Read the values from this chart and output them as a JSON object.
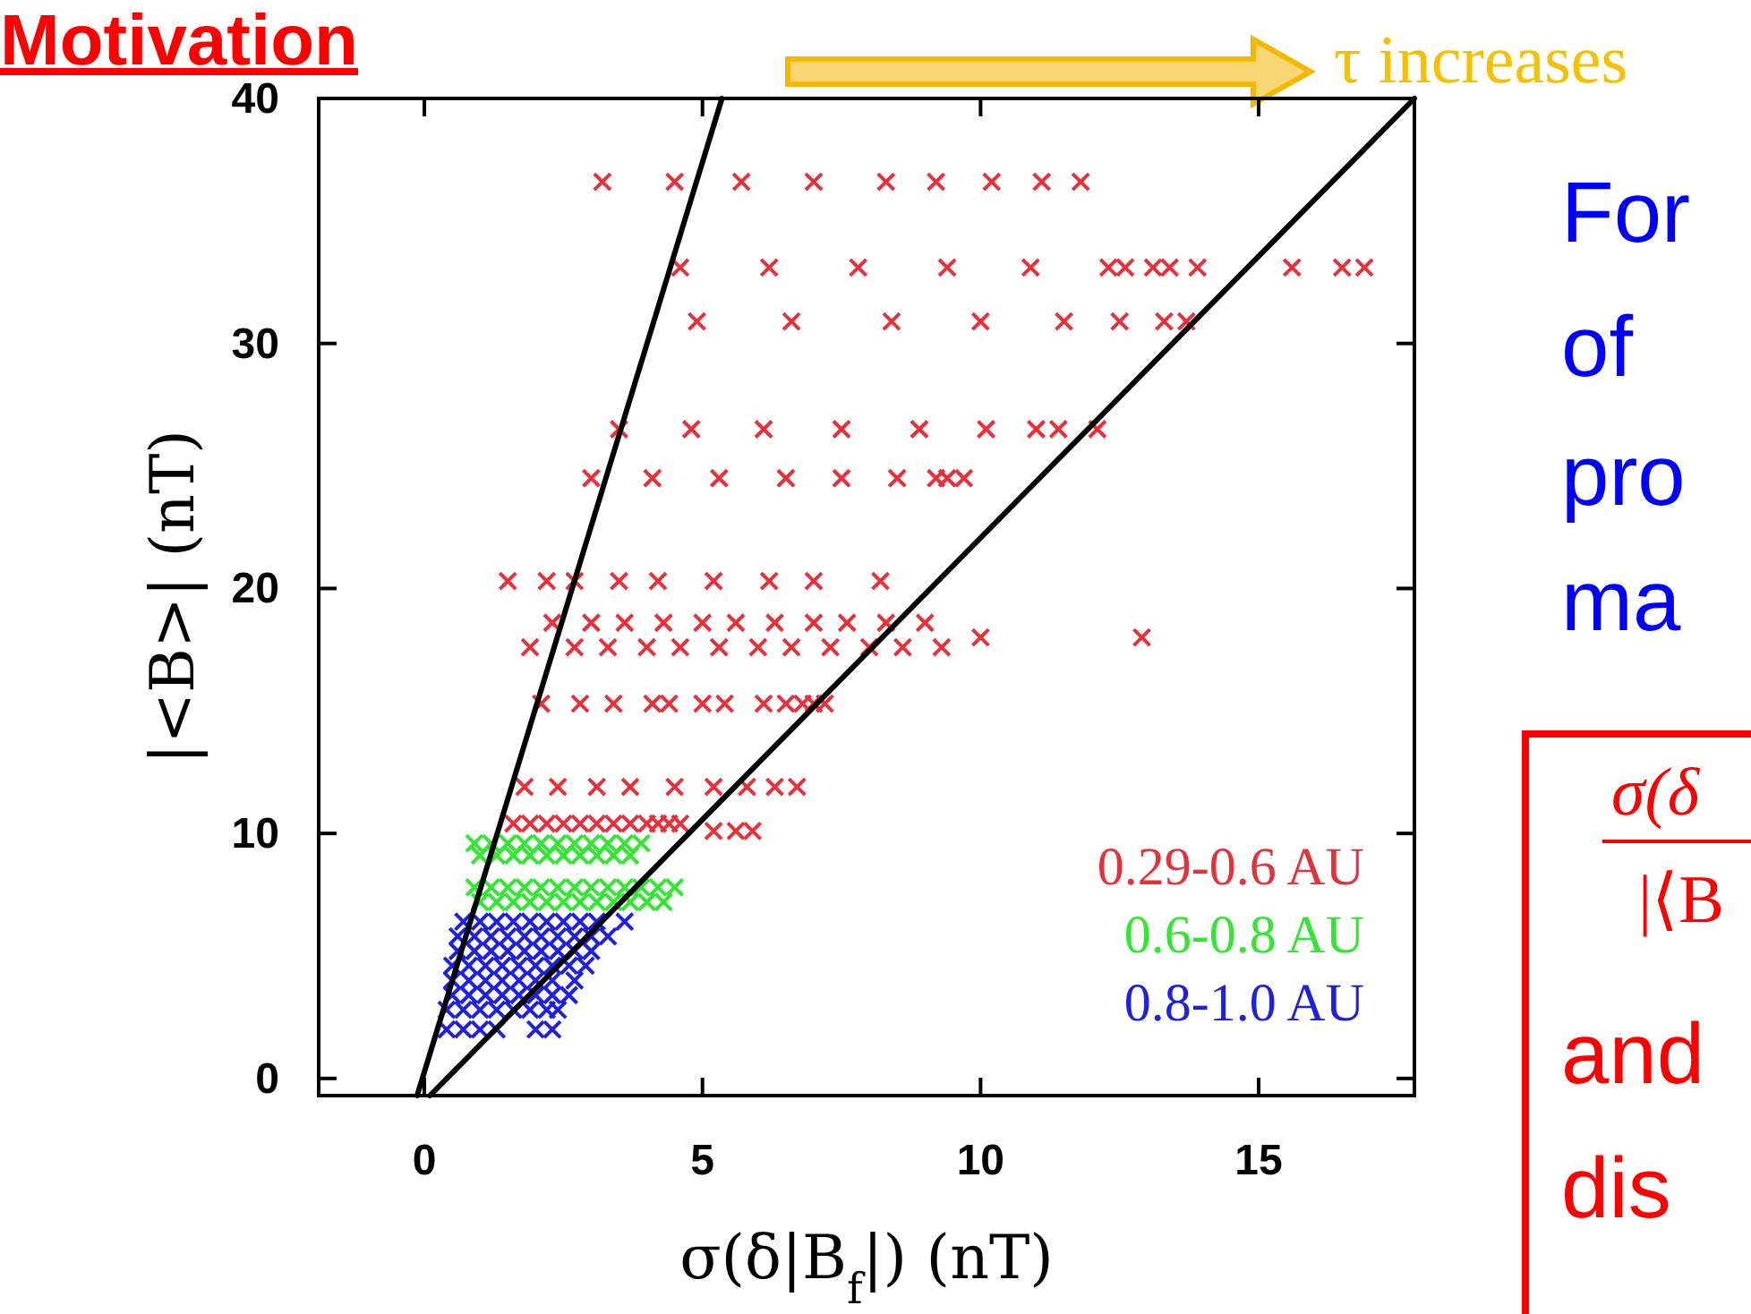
{
  "chart_data": {
    "type": "scatter",
    "xlabel": "σ(δ|B$_{f}$|) (nT)",
    "ylabel": "|<B>| (nT)",
    "xlim": [
      -1.9,
      17.8
    ],
    "ylim": [
      -0.7,
      40
    ],
    "xticks": [
      0,
      5,
      10,
      15
    ],
    "yticks": [
      0,
      10,
      20,
      30,
      40
    ],
    "grid": false,
    "legend": "bottom right",
    "marker": "cross",
    "annotations": [
      "Motivation",
      "τ increases",
      "For",
      "of",
      "pro",
      "ma",
      "σ(δ",
      "|⟨B",
      "and",
      "dis"
    ],
    "series": [
      {
        "name": "0.29-0.6 AU",
        "color": "#e8303a",
        "x": [
          3.2,
          4.5,
          5.7,
          7.0,
          8.3,
          9.2,
          10.2,
          11.1,
          11.8,
          4.6,
          6.2,
          7.8,
          9.4,
          10.9,
          12.3,
          12.6,
          13.1,
          13.4,
          13.9,
          15.6,
          16.5,
          16.9,
          4.9,
          6.6,
          8.4,
          10.0,
          11.5,
          12.5,
          13.3,
          13.7,
          3.5,
          4.8,
          6.1,
          7.5,
          8.9,
          10.1,
          11.0,
          11.4,
          12.1,
          3.0,
          4.1,
          5.3,
          6.5,
          7.5,
          8.5,
          9.2,
          9.4,
          9.7,
          1.5,
          2.2,
          2.7,
          3.5,
          4.2,
          5.2,
          6.2,
          7.0,
          8.2,
          1.9,
          2.3,
          2.7,
          3.0,
          3.3,
          3.6,
          4.0,
          4.3,
          4.6,
          5.0,
          5.3,
          5.6,
          6.0,
          6.3,
          6.6,
          7.0,
          7.3,
          7.6,
          8.0,
          8.3,
          8.6,
          9.0,
          9.3,
          10.0,
          12.9,
          2.1,
          2.8,
          3.4,
          4.1,
          4.4,
          5.0,
          5.4,
          6.1,
          6.5,
          6.8,
          7.0,
          7.2,
          1.8,
          2.4,
          3.1,
          3.7,
          4.5,
          5.2,
          5.8,
          6.3,
          6.7,
          1.6,
          1.9,
          2.2,
          2.5,
          2.8,
          3.1,
          3.4,
          3.7,
          4.0,
          4.2,
          4.4,
          4.6,
          5.2,
          5.6,
          5.9
        ],
        "values": [
          36.6,
          36.6,
          36.6,
          36.6,
          36.6,
          36.6,
          36.6,
          36.6,
          36.6,
          33.1,
          33.1,
          33.1,
          33.1,
          33.1,
          33.1,
          33.1,
          33.1,
          33.1,
          33.1,
          33.1,
          33.1,
          33.1,
          30.9,
          30.9,
          30.9,
          30.9,
          30.9,
          30.9,
          30.9,
          30.9,
          26.5,
          26.5,
          26.5,
          26.5,
          26.5,
          26.5,
          26.5,
          26.5,
          26.5,
          24.5,
          24.5,
          24.5,
          24.5,
          24.5,
          24.5,
          24.5,
          24.5,
          24.5,
          20.3,
          20.3,
          20.3,
          20.3,
          20.3,
          20.3,
          20.3,
          20.3,
          20.3,
          17.6,
          18.6,
          17.6,
          18.6,
          17.6,
          18.6,
          17.6,
          18.6,
          17.6,
          18.6,
          17.6,
          18.6,
          17.6,
          18.6,
          17.6,
          18.6,
          17.6,
          18.6,
          17.6,
          18.6,
          17.6,
          18.6,
          17.6,
          18.0,
          18.0,
          15.3,
          15.3,
          15.3,
          15.3,
          15.3,
          15.3,
          15.3,
          15.3,
          15.3,
          15.3,
          15.3,
          15.3,
          11.9,
          11.9,
          11.9,
          11.9,
          11.9,
          11.9,
          11.9,
          11.9,
          11.9,
          10.4,
          10.4,
          10.4,
          10.4,
          10.4,
          10.4,
          10.4,
          10.4,
          10.4,
          10.4,
          10.4,
          10.4,
          10.1,
          10.1,
          10.1
        ]
      },
      {
        "name": "0.6-0.8 AU",
        "color": "#33e633",
        "x": [
          0.9,
          1.2,
          1.5,
          1.8,
          2.1,
          2.4,
          2.7,
          3.0,
          3.3,
          3.6,
          3.9,
          1.0,
          1.3,
          1.6,
          1.9,
          2.2,
          2.5,
          2.8,
          3.1,
          3.4,
          3.7,
          0.9,
          1.2,
          1.5,
          1.8,
          2.1,
          2.4,
          2.7,
          3.0,
          3.3,
          3.6,
          3.9,
          4.2,
          4.5,
          1.0,
          1.3,
          1.6,
          1.9,
          2.2,
          2.5,
          2.8,
          3.1,
          3.4,
          3.7,
          4.0,
          4.3
        ],
        "values": [
          9.6,
          9.6,
          9.6,
          9.6,
          9.6,
          9.6,
          9.6,
          9.6,
          9.6,
          9.6,
          9.6,
          9.1,
          9.1,
          9.1,
          9.1,
          9.1,
          9.1,
          9.1,
          9.1,
          9.1,
          9.1,
          7.8,
          7.8,
          7.8,
          7.8,
          7.8,
          7.8,
          7.8,
          7.8,
          7.8,
          7.8,
          7.8,
          7.8,
          7.8,
          7.2,
          7.2,
          7.2,
          7.2,
          7.2,
          7.2,
          7.2,
          7.2,
          7.2,
          7.2,
          7.2,
          7.2
        ]
      },
      {
        "name": "0.8-1.0 AU",
        "color": "#2020e0",
        "x": [
          0.7,
          1.0,
          1.3,
          1.6,
          1.9,
          2.2,
          2.5,
          2.8,
          3.1,
          3.6,
          0.6,
          0.9,
          1.2,
          1.5,
          1.8,
          2.1,
          2.4,
          2.7,
          3.0,
          3.3,
          0.6,
          0.9,
          1.2,
          1.5,
          1.8,
          2.1,
          2.4,
          2.7,
          3.0,
          0.5,
          0.8,
          1.1,
          1.4,
          1.7,
          2.0,
          2.3,
          2.6,
          2.9,
          0.5,
          0.8,
          1.1,
          1.4,
          1.7,
          2.0,
          2.3,
          2.7,
          0.5,
          0.8,
          1.1,
          1.4,
          1.7,
          2.0,
          2.3,
          2.6,
          0.4,
          0.7,
          1.0,
          1.3,
          1.6,
          1.9,
          2.2,
          2.4,
          0.4,
          0.7,
          1.0,
          1.3,
          2.0,
          2.3
        ],
        "values": [
          6.4,
          6.4,
          6.4,
          6.4,
          6.4,
          6.4,
          6.4,
          6.4,
          6.4,
          6.4,
          5.8,
          5.8,
          5.8,
          5.8,
          5.8,
          5.8,
          5.8,
          5.8,
          5.8,
          5.8,
          5.2,
          5.2,
          5.2,
          5.2,
          5.2,
          5.2,
          5.2,
          5.2,
          5.2,
          4.6,
          4.6,
          4.6,
          4.6,
          4.6,
          4.6,
          4.6,
          4.6,
          4.6,
          4.0,
          4.0,
          4.0,
          4.0,
          4.0,
          4.0,
          4.0,
          4.0,
          3.4,
          3.4,
          3.4,
          3.4,
          3.4,
          3.4,
          3.4,
          3.4,
          2.8,
          2.8,
          2.8,
          2.8,
          2.8,
          2.8,
          2.8,
          2.8,
          2.0,
          2.0,
          2.0,
          2.0,
          2.0,
          2.0
        ]
      },
      {
        "type": "line",
        "color": "#000000",
        "marker": "none",
        "x": [
          -0.13,
          5.35
        ],
        "values": [
          -0.7,
          40
        ]
      },
      {
        "type": "line",
        "color": "#000000",
        "marker": "none",
        "x": [
          0.1,
          17.8
        ],
        "values": [
          -0.7,
          40
        ]
      }
    ]
  }
}
